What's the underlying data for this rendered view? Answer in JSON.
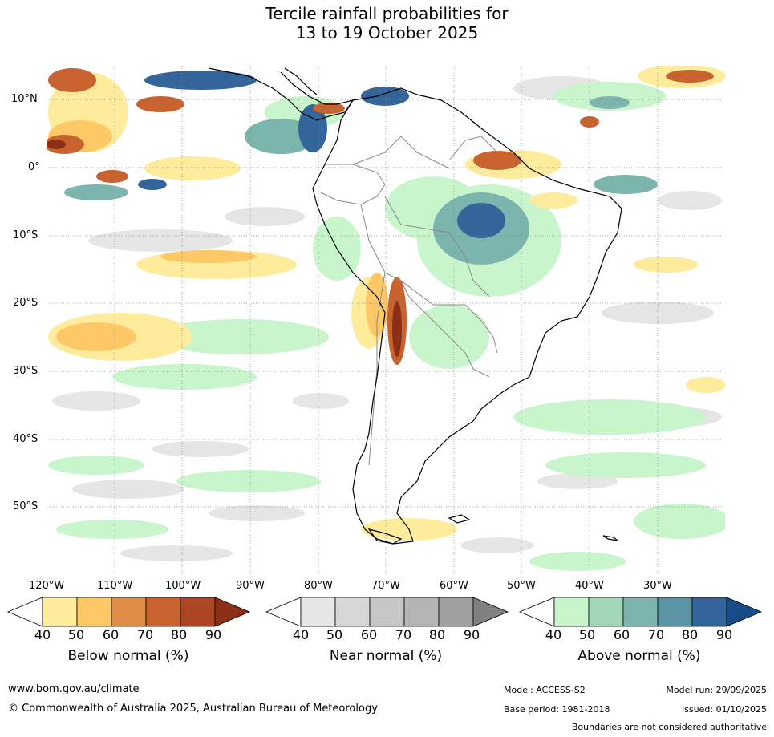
{
  "title": {
    "line1": "Tercile rainfall probabilities for",
    "line2": "13 to 19 October 2025"
  },
  "lat_labels": [
    "10°N",
    "0°",
    "10°S",
    "20°S",
    "30°S",
    "40°S",
    "50°S"
  ],
  "lon_labels": [
    "120°W",
    "110°W",
    "100°W",
    "90°W",
    "80°W",
    "70°W",
    "60°W",
    "50°W",
    "40°W",
    "30°W"
  ],
  "colorbars": [
    {
      "title": "Below normal (%)",
      "ticks": [
        "40",
        "50",
        "60",
        "70",
        "80",
        "90"
      ],
      "colors": [
        "#ffffff",
        "#ffeb9c",
        "#fdc865",
        "#dd8d45",
        "#c8632f",
        "#ad4622",
        "#8c2f17"
      ]
    },
    {
      "title": "Near normal (%)",
      "ticks": [
        "40",
        "50",
        "60",
        "70",
        "80",
        "90"
      ],
      "colors": [
        "#ffffff",
        "#e6e6e6",
        "#d7d7d7",
        "#c6c6c6",
        "#b4b4b4",
        "#a0a0a0",
        "#808080"
      ]
    },
    {
      "title": "Above normal (%)",
      "ticks": [
        "40",
        "50",
        "60",
        "70",
        "80",
        "90"
      ],
      "colors": [
        "#ffffff",
        "#c8f5cb",
        "#a2d6b8",
        "#7bb5ae",
        "#5a94a4",
        "#33649a",
        "#184c88"
      ]
    }
  ],
  "footer": {
    "url": "www.bom.gov.au/climate",
    "copyright": "© Commonwealth of Australia 2025, Australian Bureau of Meteorology",
    "model": "Model: ACCESS-S2",
    "model_run": "Model run: 29/09/2025",
    "base_period": "Base period: 1981-2018",
    "issued": "Issued: 01/10/2025",
    "disclaimer": "Boundaries are not considered authoritative"
  }
}
